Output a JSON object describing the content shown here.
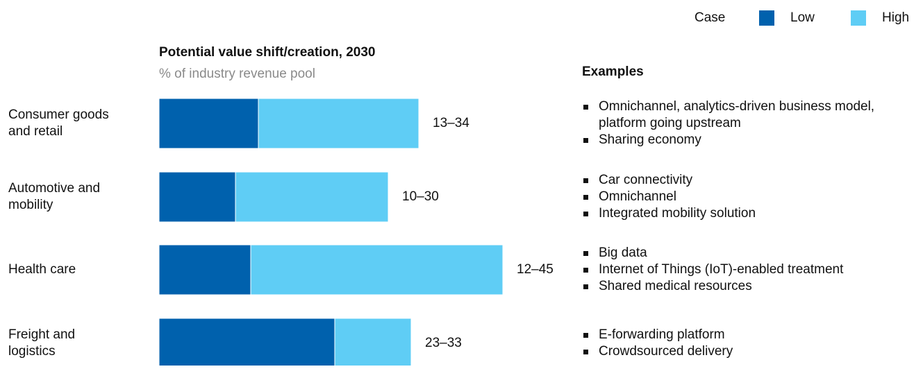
{
  "chart_data": {
    "type": "stacked_bar_horizontal",
    "title": "Potential value shift/creation, 2030",
    "subtitle": "% of industry revenue pool",
    "legend_title": "Case",
    "legend_position": "top-right",
    "examples_title": "Examples",
    "categories": [
      "Consumer goods and retail",
      "Automotive and mobility",
      "Health care",
      "Freight and logistics"
    ],
    "series": [
      {
        "name": "Low",
        "color": "#0061ad",
        "values": [
          13,
          10,
          12,
          23
        ]
      },
      {
        "name": "High",
        "color": "#5fcdf5",
        "values": [
          21,
          20,
          33,
          10
        ]
      }
    ],
    "range_labels": [
      "13–34",
      "10–30",
      "12–45",
      "23–33"
    ],
    "examples": [
      [
        "Omnichannel, analytics-driven business model, platform going upstream",
        "Sharing economy"
      ],
      [
        "Car connectivity",
        "Omnichannel",
        "Integrated mobility solution"
      ],
      [
        "Big data",
        "Internet of Things (IoT)-enabled treatment",
        "Shared medical resources"
      ],
      [
        "E-forwarding platform",
        "Crowdsourced delivery"
      ]
    ]
  }
}
